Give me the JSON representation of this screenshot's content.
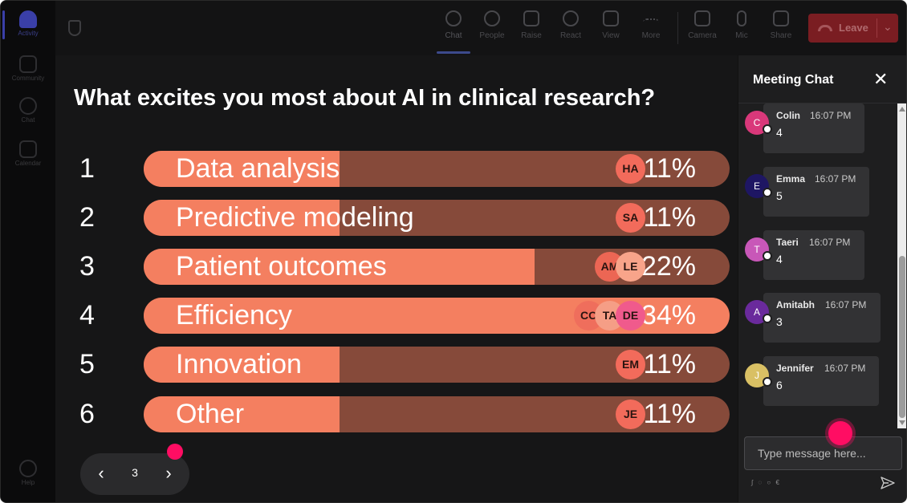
{
  "rail": {
    "items": [
      {
        "label": "Activity",
        "icon": "bell-icon"
      },
      {
        "label": "Community",
        "icon": "community-icon"
      },
      {
        "label": "Chat",
        "icon": "chat-icon"
      },
      {
        "label": "Calendar",
        "icon": "calendar-icon"
      }
    ],
    "help": {
      "label": "Help",
      "icon": "help-icon"
    }
  },
  "toolbar": {
    "buttons": [
      {
        "label": "Chat",
        "icon": "chat-bubble-icon"
      },
      {
        "label": "People",
        "icon": "people-icon"
      },
      {
        "label": "Raise",
        "icon": "raise-hand-icon"
      },
      {
        "label": "React",
        "icon": "react-emoji-icon"
      },
      {
        "label": "View",
        "icon": "view-grid-icon"
      },
      {
        "label": "More",
        "icon": "more-dots-icon"
      },
      {
        "label": "Camera",
        "icon": "camera-icon"
      },
      {
        "label": "Mic",
        "icon": "mic-icon"
      },
      {
        "label": "Share",
        "icon": "share-icon"
      }
    ],
    "leave_label": "Leave"
  },
  "poll": {
    "question": "What excites you most about AI in clinical research?",
    "rows": [
      {
        "num": "1",
        "label": "Data analysis",
        "pct": "11%",
        "value": 11,
        "voters": [
          {
            "initials": "HA",
            "color": "#f26b5b"
          }
        ]
      },
      {
        "num": "2",
        "label": "Predictive modeling",
        "pct": "11%",
        "value": 11,
        "voters": [
          {
            "initials": "SA",
            "color": "#f26b5b"
          }
        ]
      },
      {
        "num": "3",
        "label": "Patient outcomes",
        "pct": "22%",
        "value": 22,
        "voters": [
          {
            "initials": "AM",
            "color": "#ec6654"
          },
          {
            "initials": "LE",
            "color": "#f8a48a"
          }
        ]
      },
      {
        "num": "4",
        "label": "Efficiency",
        "pct": "34%",
        "value": 34,
        "voters": [
          {
            "initials": "CO",
            "color": "#ef6e5c"
          },
          {
            "initials": "TA",
            "color": "#f59e86"
          },
          {
            "initials": "DE",
            "color": "#f05a8c"
          }
        ]
      },
      {
        "num": "5",
        "label": "Innovation",
        "pct": "11%",
        "value": 11,
        "voters": [
          {
            "initials": "EM",
            "color": "#f26b5b"
          }
        ]
      },
      {
        "num": "6",
        "label": "Other",
        "pct": "11%",
        "value": 11,
        "voters": [
          {
            "initials": "JE",
            "color": "#f26b5b"
          }
        ]
      }
    ],
    "page": "3",
    "bar_color": "#f47f60",
    "bar_track_color": "#864a3a"
  },
  "chat": {
    "title": "Meeting Chat",
    "messages": [
      {
        "initial": "C",
        "name": "Colin",
        "time": "16:07 PM",
        "text": "4",
        "color": "#d9387a"
      },
      {
        "initial": "E",
        "name": "Emma",
        "time": "16:07 PM",
        "text": "5",
        "color": "#1e1663"
      },
      {
        "initial": "T",
        "name": "Taeri",
        "time": "16:07 PM",
        "text": "4",
        "color": "#c857b8"
      },
      {
        "initial": "A",
        "name": "Amitabh",
        "time": "16:07 PM",
        "text": "3",
        "color": "#6a2a9c"
      },
      {
        "initial": "J",
        "name": "Jennifer",
        "time": "16:07 PM",
        "text": "6",
        "color": "#d9c064"
      }
    ],
    "input_placeholder": "Type message here...",
    "input_value": ""
  }
}
